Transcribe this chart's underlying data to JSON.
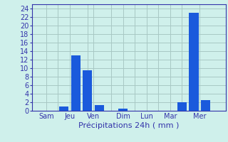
{
  "xlabel": "Précipitations 24h ( mm )",
  "background_color": "#cff0eb",
  "bar_color": "#1a5adc",
  "grid_color": "#a8c8c4",
  "axis_color": "#3333aa",
  "label_color": "#3333aa",
  "ylim": [
    0,
    25
  ],
  "yticks": [
    0,
    2,
    4,
    6,
    8,
    10,
    12,
    14,
    16,
    18,
    20,
    22,
    24
  ],
  "x_positions": [
    0,
    1,
    2,
    3,
    4,
    5,
    6,
    7,
    8,
    9,
    10,
    11,
    12,
    13,
    14,
    15
  ],
  "values": [
    0,
    0,
    1.0,
    13.0,
    9.5,
    1.3,
    0,
    0.5,
    0,
    0,
    0,
    0,
    2.0,
    23.0,
    2.5,
    0
  ],
  "tick_positions": [
    0.5,
    2.5,
    4.5,
    7.0,
    9.0,
    11.0,
    13.5
  ],
  "tick_labels": [
    "Sam",
    "Jeu",
    "Ven",
    "Dim",
    "Lun",
    "Mar",
    "Mer"
  ],
  "sep_positions": [
    1.5,
    4.0,
    6.0,
    8.0,
    10.0,
    12.0
  ],
  "xlabel_fontsize": 8,
  "tick_fontsize": 7,
  "ytick_fontsize": 7
}
